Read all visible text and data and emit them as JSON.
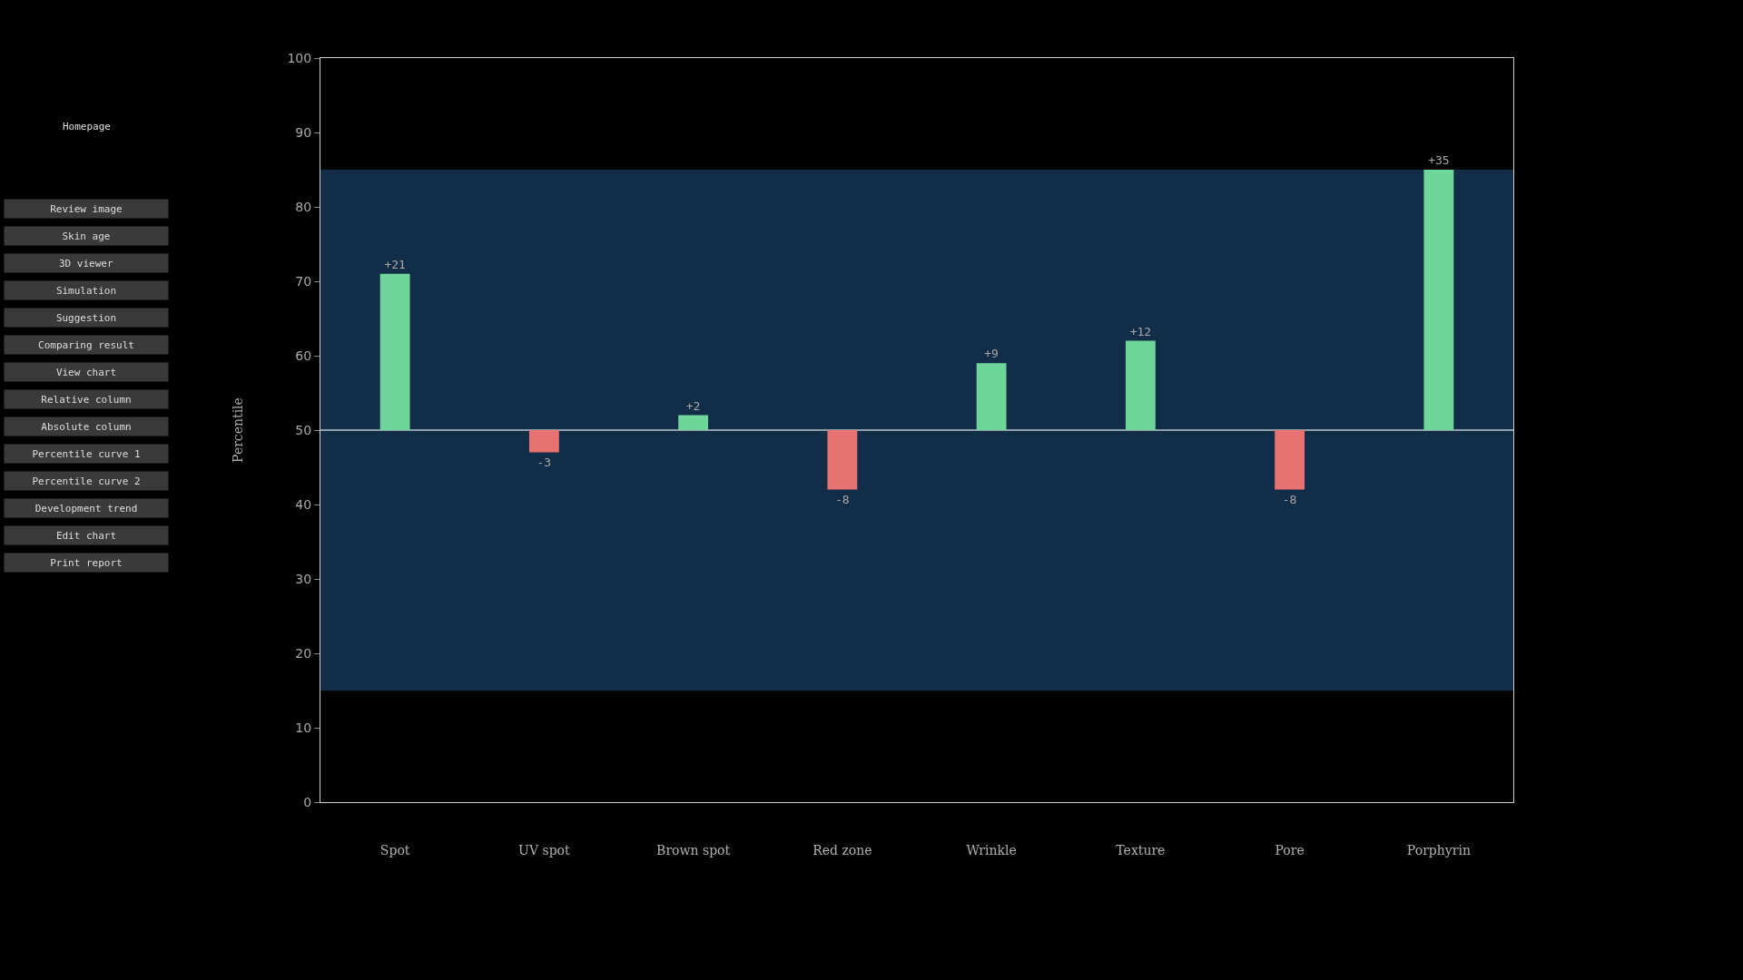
{
  "chart_data": {
    "type": "bar",
    "ylabel": "Percentile",
    "categories": [
      "Spot",
      "UV spot",
      "Brown spot",
      "Red zone",
      "Wrinkle",
      "Texture",
      "Pore",
      "Porphyrin"
    ],
    "base": [
      50,
      50,
      50,
      50,
      50,
      50,
      50,
      50
    ],
    "values": [
      21,
      -3,
      2,
      -8,
      9,
      12,
      -8,
      35
    ],
    "value_labels": [
      "+21",
      "-3",
      "+2",
      "-8",
      "+9",
      "+12",
      "-8",
      "+35"
    ],
    "colors": [
      "#6fd69a",
      "#e87272",
      "#6fd69a",
      "#e87272",
      "#6fd69a",
      "#6fd69a",
      "#e87272",
      "#6fd69a"
    ],
    "ylim": [
      0,
      100
    ],
    "yticks": [
      0,
      10,
      20,
      30,
      40,
      50,
      60,
      70,
      80,
      90,
      100
    ],
    "bands": [
      {
        "axis": "y",
        "from": 15,
        "to": 85,
        "color": "#122d47"
      }
    ],
    "ref_lines": [
      {
        "axis": "y",
        "value": 50,
        "color": "#b8c4cc"
      }
    ],
    "grid": false,
    "annotations": [
      "Homepage",
      "Review image",
      "Skin age",
      "3D viewer",
      "Simulation",
      "Suggestion",
      "Comparing result",
      "View chart",
      "Relative column",
      "Absolute column",
      "Percentile curve 1",
      "Percentile curve 2",
      "Development trend",
      "Edit chart",
      "Print report"
    ]
  }
}
